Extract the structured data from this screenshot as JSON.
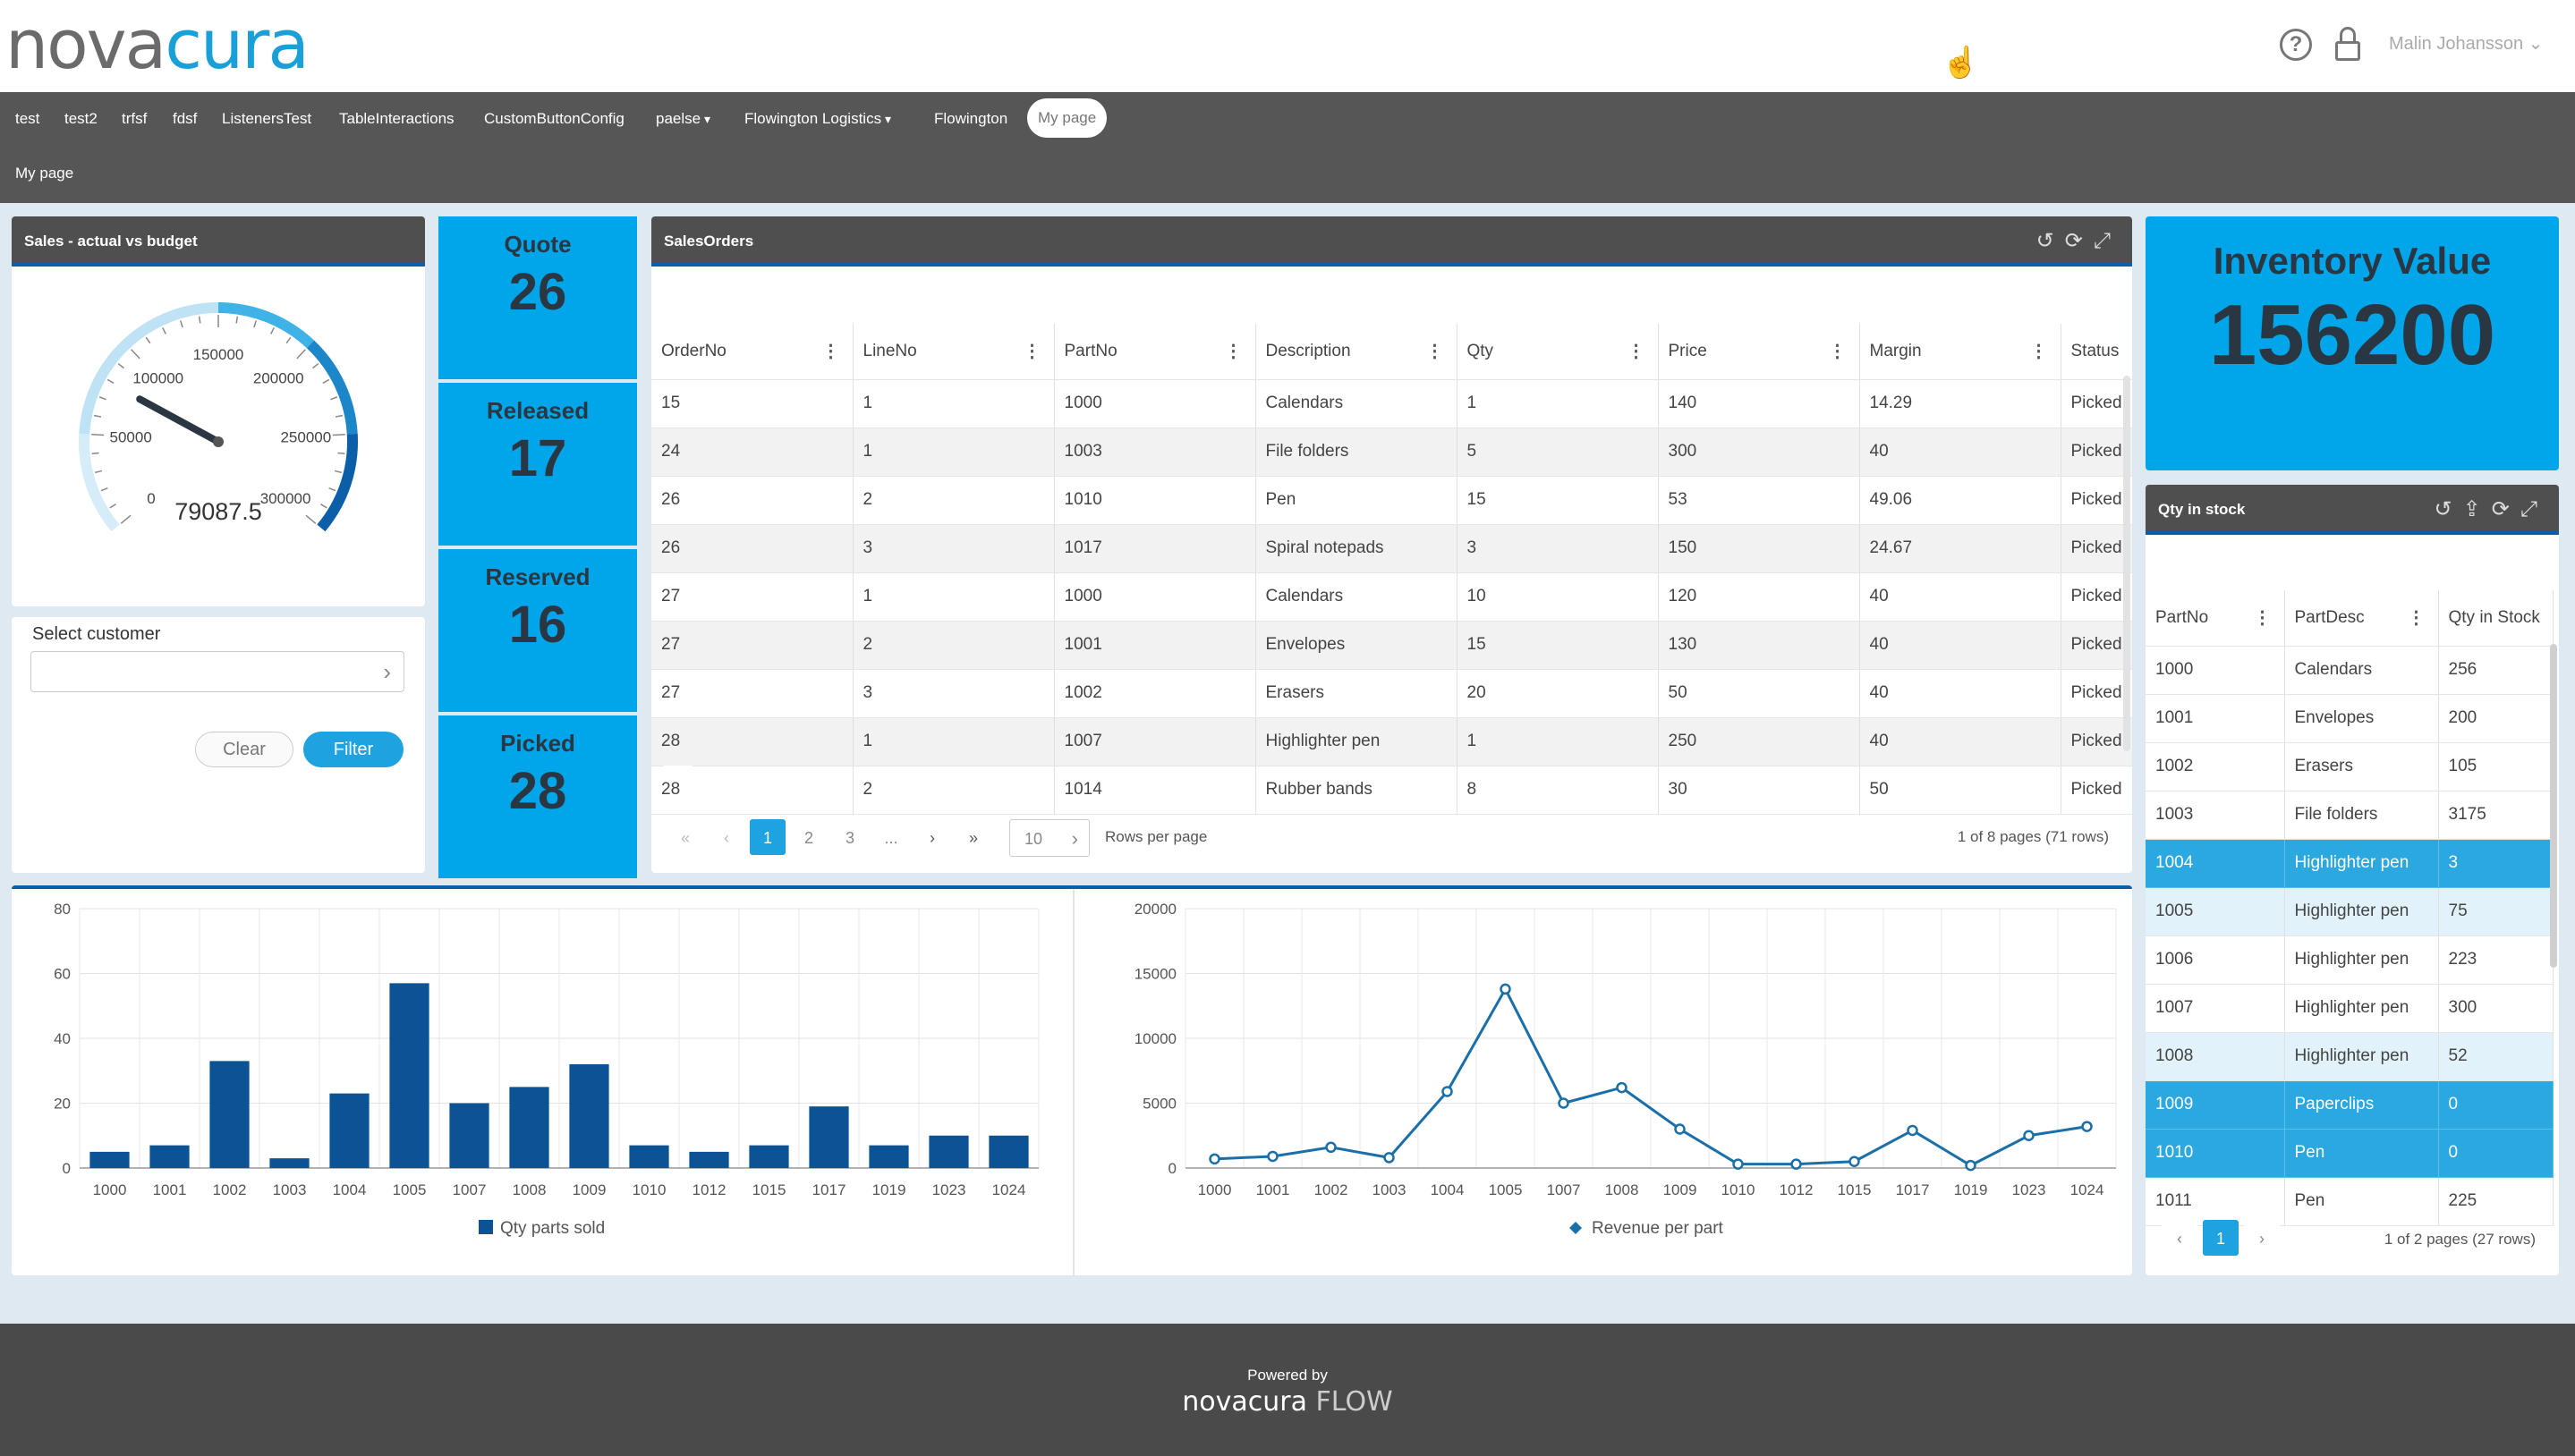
{
  "header": {
    "logo_a": "nova",
    "logo_b": "cura",
    "user": "Malin Johansson",
    "help_glyph": "?",
    "caret": "⌄"
  },
  "nav": {
    "items": [
      "test",
      "test2",
      "trfsf",
      "fdsf",
      "ListenersTest",
      "TableInteractions",
      "CustomButtonConfig",
      "paelse",
      "Flowington Logistics",
      "Flowington",
      "My page"
    ],
    "dropdown_items": [
      "paelse",
      "Flowington Logistics"
    ],
    "active": "My page",
    "breadcrumb": "My page"
  },
  "gauge": {
    "title": "Sales - actual vs budget",
    "value": "79087.5",
    "value_num": 79087.5,
    "min": 0,
    "max": 300000,
    "ticks": [
      "0",
      "50000",
      "100000",
      "150000",
      "200000",
      "250000",
      "300000"
    ]
  },
  "filter": {
    "label": "Select customer",
    "value": "",
    "clear": "Clear",
    "filter": "Filter"
  },
  "kpis": [
    {
      "label": "Quote",
      "value": "26"
    },
    {
      "label": "Released",
      "value": "17"
    },
    {
      "label": "Reserved",
      "value": "16"
    },
    {
      "label": "Picked",
      "value": "28"
    }
  ],
  "sales_orders": {
    "title": "SalesOrders",
    "columns": [
      "OrderNo",
      "LineNo",
      "PartNo",
      "Description",
      "Qty",
      "Price",
      "Margin",
      "Status"
    ],
    "rows": [
      [
        "15",
        "1",
        "1000",
        "Calendars",
        "1",
        "140",
        "14.29",
        "Picked"
      ],
      [
        "24",
        "1",
        "1003",
        "File folders",
        "5",
        "300",
        "40",
        "Picked"
      ],
      [
        "26",
        "2",
        "1010",
        "Pen",
        "15",
        "53",
        "49.06",
        "Picked"
      ],
      [
        "26",
        "3",
        "1017",
        "Spiral notepads",
        "3",
        "150",
        "24.67",
        "Picked"
      ],
      [
        "27",
        "1",
        "1000",
        "Calendars",
        "10",
        "120",
        "40",
        "Picked"
      ],
      [
        "27",
        "2",
        "1001",
        "Envelopes",
        "15",
        "130",
        "40",
        "Picked"
      ],
      [
        "27",
        "3",
        "1002",
        "Erasers",
        "20",
        "50",
        "40",
        "Picked"
      ],
      [
        "28",
        "1",
        "1007",
        "Highlighter pen",
        "1",
        "250",
        "40",
        "Picked"
      ],
      [
        "28",
        "2",
        "1014",
        "Rubber bands",
        "8",
        "30",
        "50",
        "Picked"
      ]
    ],
    "pager": {
      "first": "«",
      "prev": "‹",
      "pages": [
        "1",
        "2",
        "3",
        "..."
      ],
      "next": "›",
      "last": "»",
      "rows_per_page": "10",
      "rows_per_page_label": "Rows per page",
      "summary": "1 of 8 pages (71 rows)"
    }
  },
  "inventory": {
    "label": "Inventory Value",
    "value": "156200"
  },
  "stock": {
    "title": "Qty in stock",
    "columns": [
      "PartNo",
      "PartDesc",
      "Qty in Stock"
    ],
    "rows": [
      [
        "1000",
        "Calendars",
        "256"
      ],
      [
        "1001",
        "Envelopes",
        "200"
      ],
      [
        "1002",
        "Erasers",
        "105"
      ],
      [
        "1003",
        "File folders",
        "3175"
      ],
      [
        "1004",
        "Highlighter pen",
        "3"
      ],
      [
        "1005",
        "Highlighter pen",
        "75"
      ],
      [
        "1006",
        "Highlighter pen",
        "223"
      ],
      [
        "1007",
        "Highlighter pen",
        "300"
      ],
      [
        "1008",
        "Highlighter pen",
        "52"
      ],
      [
        "1009",
        "Paperclips",
        "0"
      ],
      [
        "1010",
        "Pen",
        "0"
      ],
      [
        "1011",
        "Pen",
        "225"
      ]
    ],
    "row_states": [
      "",
      "",
      "",
      "",
      "sel",
      "sel2",
      "",
      "",
      "sel2",
      "sel",
      "sel",
      ""
    ],
    "pager": {
      "prev": "‹",
      "page": "1",
      "next": "›",
      "summary": "1 of 2 pages (27 rows)"
    }
  },
  "colors": {
    "accent": "#00a6e9",
    "header_dark": "#4f4f4f",
    "bar": "#0b5394",
    "line": "#1a6fa8"
  },
  "chart_data": [
    {
      "type": "bar",
      "categories": [
        "1000",
        "1001",
        "1002",
        "1003",
        "1004",
        "1005",
        "1007",
        "1008",
        "1009",
        "1010",
        "1012",
        "1015",
        "1017",
        "1019",
        "1023",
        "1024"
      ],
      "series": [
        {
          "name": "Qty parts sold",
          "values": [
            5,
            7,
            33,
            3,
            23,
            57,
            20,
            25,
            32,
            7,
            5,
            7,
            19,
            7,
            10,
            10
          ]
        }
      ],
      "ylim": [
        0,
        80
      ],
      "yticks": [
        "0",
        "20",
        "40",
        "60",
        "80"
      ],
      "grid": true,
      "legend": "bottom"
    },
    {
      "type": "line",
      "categories": [
        "1000",
        "1001",
        "1002",
        "1003",
        "1004",
        "1005",
        "1007",
        "1008",
        "1009",
        "1010",
        "1012",
        "1015",
        "1017",
        "1019",
        "1023",
        "1024"
      ],
      "series": [
        {
          "name": "Revenue per part",
          "values": [
            700,
            900,
            1600,
            800,
            5900,
            13800,
            5000,
            6200,
            3000,
            300,
            300,
            500,
            2900,
            200,
            2500,
            3200
          ]
        }
      ],
      "ylim": [
        0,
        20000
      ],
      "yticks": [
        "0",
        "5000",
        "10000",
        "15000",
        "20000"
      ],
      "grid": true,
      "legend": "bottom"
    }
  ],
  "footer": {
    "powered": "Powered by",
    "brand_a": "nova",
    "brand_b": "cura",
    "brand_c": "FLOW"
  }
}
